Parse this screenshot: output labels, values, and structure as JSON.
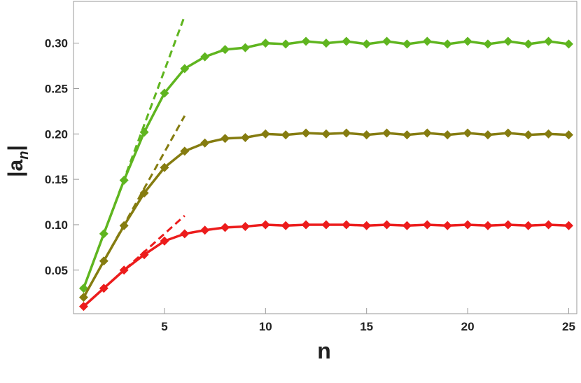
{
  "chart_data": {
    "type": "line",
    "xlabel": "n",
    "ylabel": [
      "|a",
      "n",
      "|"
    ],
    "x": [
      1,
      2,
      3,
      4,
      5,
      6,
      7,
      8,
      9,
      10,
      11,
      12,
      13,
      14,
      15,
      16,
      17,
      18,
      19,
      20,
      21,
      22,
      23,
      24,
      25
    ],
    "series": [
      {
        "color": "#5fb51f",
        "values": [
          0.03,
          0.09,
          0.149,
          0.202,
          0.245,
          0.272,
          0.285,
          0.293,
          0.295,
          0.3,
          0.299,
          0.302,
          0.3,
          0.302,
          0.299,
          0.302,
          0.299,
          0.302,
          0.299,
          0.302,
          0.299,
          0.302,
          0.299,
          0.302,
          0.299
        ]
      },
      {
        "color": "#857c10",
        "values": [
          0.02,
          0.06,
          0.099,
          0.135,
          0.163,
          0.181,
          0.19,
          0.195,
          0.196,
          0.2,
          0.199,
          0.201,
          0.2,
          0.201,
          0.199,
          0.201,
          0.199,
          0.201,
          0.199,
          0.201,
          0.199,
          0.201,
          0.199,
          0.2,
          0.199
        ]
      },
      {
        "color": "#ec1c1c",
        "values": [
          0.01,
          0.03,
          0.05,
          0.067,
          0.082,
          0.09,
          0.094,
          0.097,
          0.098,
          0.1,
          0.099,
          0.1,
          0.1,
          0.1,
          0.099,
          0.1,
          0.099,
          0.1,
          0.099,
          0.1,
          0.099,
          0.1,
          0.099,
          0.1,
          0.099
        ]
      }
    ],
    "guides": [
      {
        "color": "#5fb51f",
        "x": [
          1,
          6
        ],
        "values": [
          0.03,
          0.33
        ]
      },
      {
        "color": "#857c10",
        "x": [
          1,
          6
        ],
        "values": [
          0.02,
          0.22
        ]
      },
      {
        "color": "#ec1c1c",
        "x": [
          1,
          6
        ],
        "values": [
          0.01,
          0.11
        ]
      }
    ],
    "xlim": [
      0.5,
      25.4
    ],
    "ylim": [
      0.002,
      0.346
    ],
    "xticks": [
      5,
      10,
      15,
      20,
      25
    ],
    "yticks": [
      0.05,
      {
        "value": 0.1,
        "label": "0.10"
      },
      0.15,
      {
        "value": 0.2,
        "label": "0.20"
      },
      0.25,
      {
        "value": 0.3,
        "label": "0.30"
      }
    ]
  }
}
